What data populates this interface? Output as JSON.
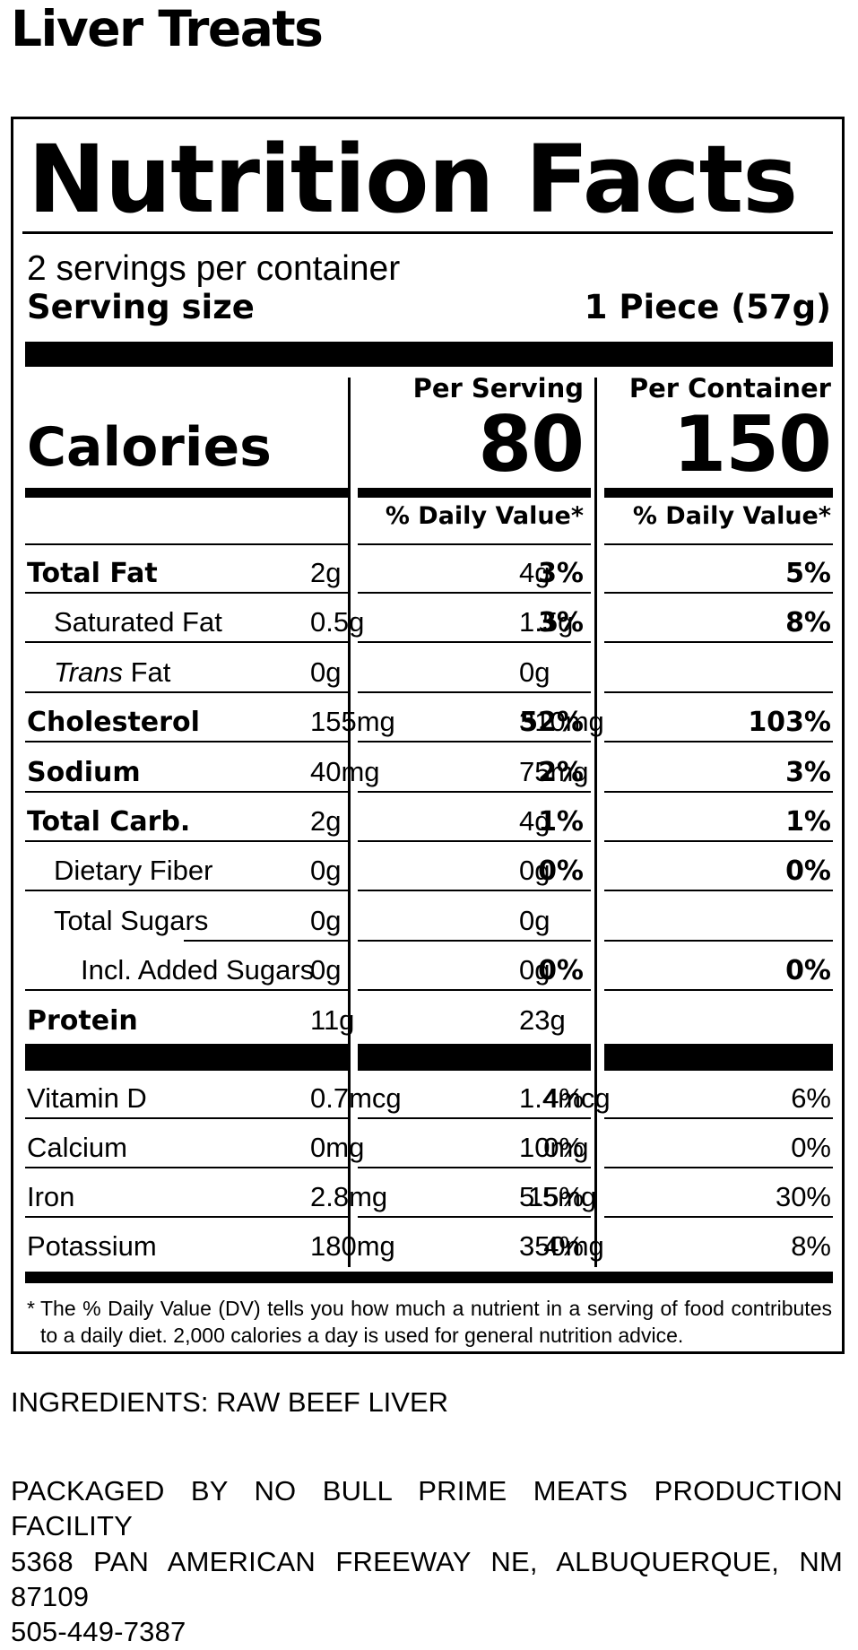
{
  "product_title": "Liver Treats",
  "label": {
    "title": "Nutrition Facts",
    "servings_per_container": "2 servings per container",
    "serving_size_label": "Serving size",
    "serving_size_value": "1 Piece (57g)",
    "per_serving_heading": "Per Serving",
    "per_container_heading": "Per Container",
    "calories_label": "Calories",
    "calories_per_serving": "80",
    "calories_per_container": "150",
    "daily_value_heading": "% Daily Value*",
    "nutrients": [
      {
        "name": "Total Fat",
        "serving_amount": "2g",
        "serving_dv": "3%",
        "container_amount": "4g",
        "container_dv": "5%"
      },
      {
        "name": "Saturated Fat",
        "serving_amount": "0.5g",
        "serving_dv": "3%",
        "container_amount": "1.5g",
        "container_dv": "8%"
      },
      {
        "name_italic": "Trans",
        "name_rest": " Fat",
        "serving_amount": "0g",
        "serving_dv": "",
        "container_amount": "0g",
        "container_dv": ""
      },
      {
        "name": "Cholesterol",
        "serving_amount": "155mg",
        "serving_dv": "52%",
        "container_amount": "310mg",
        "container_dv": "103%"
      },
      {
        "name": "Sodium",
        "serving_amount": "40mg",
        "serving_dv": "2%",
        "container_amount": "75mg",
        "container_dv": "3%"
      },
      {
        "name": "Total Carb.",
        "serving_amount": "2g",
        "serving_dv": "1%",
        "container_amount": "4g",
        "container_dv": "1%"
      },
      {
        "name": "Dietary Fiber",
        "serving_amount": "0g",
        "serving_dv": "0%",
        "container_amount": "0g",
        "container_dv": "0%"
      },
      {
        "name": "Total Sugars",
        "serving_amount": "0g",
        "serving_dv": "",
        "container_amount": "0g",
        "container_dv": ""
      },
      {
        "name": "Incl. Added Sugars",
        "serving_amount": "0g",
        "serving_dv": "0%",
        "container_amount": "0g",
        "container_dv": "0%"
      },
      {
        "name": "Protein",
        "serving_amount": "11g",
        "serving_dv": "",
        "container_amount": "23g",
        "container_dv": ""
      }
    ],
    "vitamins": [
      {
        "name": "Vitamin D",
        "serving_amount": "0.7mcg",
        "serving_dv": "4%",
        "container_amount": "1.4mcg",
        "container_dv": "6%"
      },
      {
        "name": "Calcium",
        "serving_amount": "0mg",
        "serving_dv": "0%",
        "container_amount": "10mg",
        "container_dv": "0%"
      },
      {
        "name": "Iron",
        "serving_amount": "2.8mg",
        "serving_dv": "15%",
        "container_amount": "5.5mg",
        "container_dv": "30%"
      },
      {
        "name": "Potassium",
        "serving_amount": "180mg",
        "serving_dv": "4%",
        "container_amount": "350mg",
        "container_dv": "8%"
      }
    ],
    "footnote_star": "*",
    "footnote": "The % Daily Value (DV) tells you how much a nutrient in a serving of food contributes to a daily diet. 2,000 calories a day is used for general nutrition advice."
  },
  "ingredients": "INGREDIENTS: RAW BEEF LIVER",
  "packager": {
    "line1": "PACKAGED BY NO BULL PRIME MEATS PRODUCTION",
    "line2": "FACILITY",
    "line3": "5368 PAN AMERICAN FREEWAY NE, ALBUQUERQUE, NM",
    "line4": "87109",
    "line5": "505-449-7387"
  }
}
